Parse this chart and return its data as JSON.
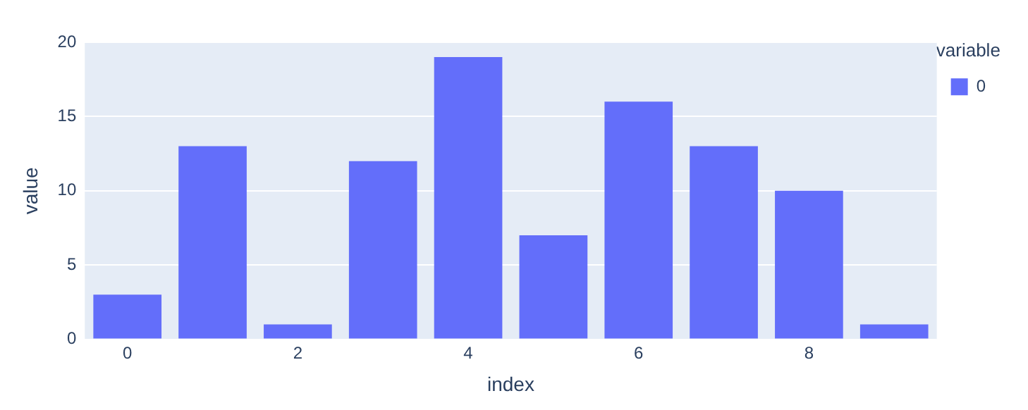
{
  "chart_data": {
    "type": "bar",
    "xlabel": "index",
    "ylabel": "value",
    "legend_title": "variable",
    "x": [
      0,
      1,
      2,
      3,
      4,
      5,
      6,
      7,
      8,
      9
    ],
    "series": [
      {
        "name": "0",
        "color": "#636efa",
        "values": [
          3,
          13,
          1,
          12,
          19,
          7,
          16,
          13,
          10,
          1
        ]
      }
    ],
    "xlim": [
      -0.5,
      9.5
    ],
    "xticks": [
      0,
      2,
      4,
      6,
      8
    ],
    "ylim": [
      0,
      20
    ],
    "yticks": [
      0,
      5,
      10,
      15,
      20
    ],
    "grid": "y",
    "legend": "top right"
  }
}
